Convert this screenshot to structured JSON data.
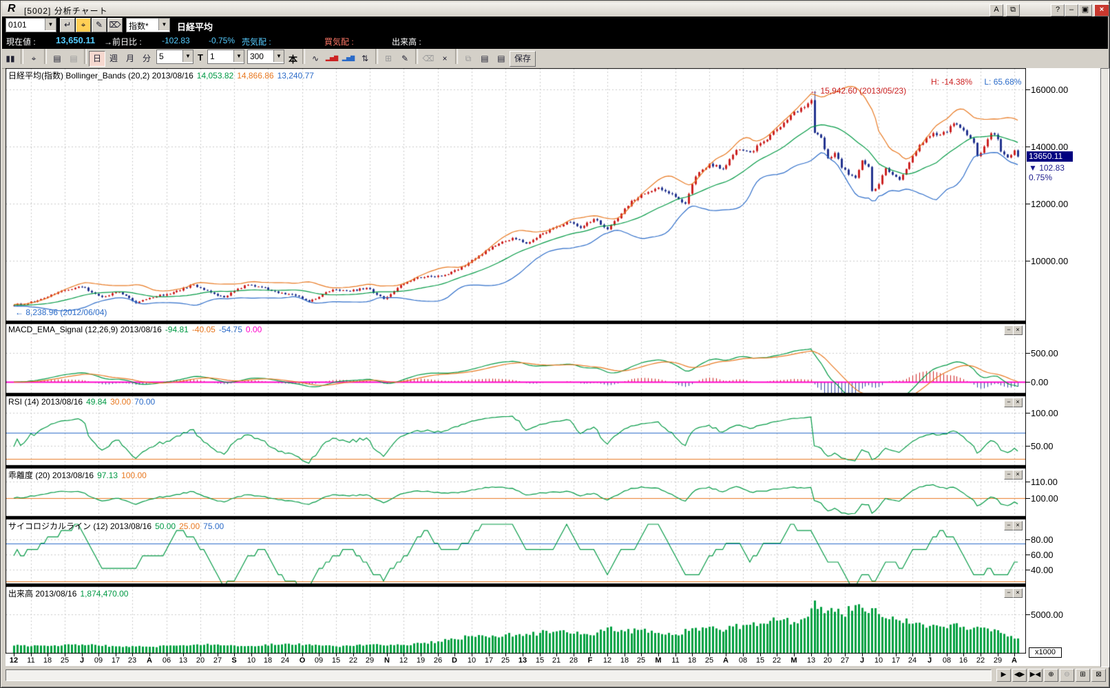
{
  "window": {
    "logo": "R",
    "title": "[5002] 分析チャート",
    "titlebar_buttons": [
      {
        "name": "font-button",
        "g": "A"
      },
      {
        "name": "arrange-windows-button",
        "g": "⧉"
      },
      {
        "name": "help-button",
        "g": "?"
      },
      {
        "name": "minimize-button",
        "g": "–"
      },
      {
        "name": "restore-button",
        "g": "▣"
      },
      {
        "name": "close-button",
        "g": "×",
        "red": true
      }
    ]
  },
  "symbol_bar": {
    "code": "0101",
    "enter_icon": "↵",
    "search_icon": "⌖",
    "edit_icon": "✎",
    "erase_icon": "⌦",
    "category": "指数*",
    "instrument_name": "日経平均"
  },
  "quote_bar": {
    "label_current": "現在値 :",
    "current": "13,650.11",
    "label_change": "→前日比 :",
    "change": "-102.83",
    "change_pct": "-0.75%",
    "label_ask": "売気配 :",
    "label_bid": "買気配 :",
    "label_volume": "出来高 :"
  },
  "chart_toolbar": {
    "items": [
      {
        "t": "btn",
        "name": "candlestick-icon",
        "g": "▮▮"
      },
      {
        "t": "sep"
      },
      {
        "t": "btn",
        "name": "zoom-icon",
        "g": "⌖"
      },
      {
        "t": "sep"
      },
      {
        "t": "btn",
        "name": "new-chart-icon",
        "g": "▤"
      },
      {
        "t": "btn",
        "name": "copy-chart-icon",
        "g": "▤",
        "dis": true
      },
      {
        "t": "sep"
      },
      {
        "t": "tab",
        "name": "period-day-button",
        "g": "日",
        "sel": true
      },
      {
        "t": "tab",
        "name": "period-week-button",
        "g": "週"
      },
      {
        "t": "tab",
        "name": "period-month-button",
        "g": "月"
      },
      {
        "t": "tab",
        "name": "period-minute-button",
        "g": "分"
      },
      {
        "t": "combo",
        "name": "minute-interval-select",
        "g": "5"
      },
      {
        "t": "label",
        "name": "tick-label",
        "g": "T"
      },
      {
        "t": "combo",
        "name": "tick-select",
        "g": "1"
      },
      {
        "t": "combo",
        "name": "bar-count-select",
        "g": "300"
      },
      {
        "t": "label",
        "name": "bars-unit-label",
        "g": "本"
      },
      {
        "t": "sep"
      },
      {
        "t": "btn",
        "name": "line-chart-icon",
        "g": "∿"
      },
      {
        "t": "btn",
        "name": "red-bars-icon",
        "g": "▂▅▇",
        "c": "#cc2222"
      },
      {
        "t": "btn",
        "name": "blue-bars-icon",
        "g": "▂▅▇",
        "c": "#2b6bc8"
      },
      {
        "t": "btn",
        "name": "updown-arrows-icon",
        "g": "⇅"
      },
      {
        "t": "sep"
      },
      {
        "t": "btn",
        "name": "grid-icon",
        "g": "⊞",
        "dis": true
      },
      {
        "t": "btn",
        "name": "pencil-icon",
        "g": "✎"
      },
      {
        "t": "sep"
      },
      {
        "t": "btn",
        "name": "eraser-icon",
        "g": "⌫",
        "dis": true
      },
      {
        "t": "btn",
        "name": "delete-drawing-icon",
        "g": "×"
      },
      {
        "t": "sep"
      },
      {
        "t": "btn",
        "name": "window-layout-icon",
        "g": "⧉",
        "dis": true
      },
      {
        "t": "btn",
        "name": "page-back-icon",
        "g": "▤"
      },
      {
        "t": "btn",
        "name": "page-forward-icon",
        "g": "▤"
      },
      {
        "t": "btn",
        "name": "save-button",
        "g": "保存",
        "wide": true
      }
    ]
  },
  "panels": {
    "main": {
      "title": "日経平均(指数) Bollinger_Bands (20,2) 2013/08/16",
      "v1": "14,053.82",
      "v2": "14,866.86",
      "v3": "13,240.77",
      "high_label": "H: -14.38%",
      "low_label": "L: 65.68%",
      "annotation_high": "← 15,942.60 (2013/05/23)",
      "annotation_low": "← 8,238.96 (2012/06/04)",
      "marker_price": "13650.11",
      "marker_change": "▼ 102.83",
      "marker_pct": "0.75%"
    },
    "macd": {
      "title": "MACD_EMA_Signal (12,26,9) 2013/08/16",
      "v1": "-94.81",
      "v2": "-40.05",
      "v3": "-54.75",
      "v4": "0.00"
    },
    "rsi": {
      "title": "RSI (14) 2013/08/16",
      "v1": "49.84",
      "v2": "30.00",
      "v3": "70.00"
    },
    "dev": {
      "title": "乖離度 (20) 2013/08/16",
      "v1": "97.13",
      "v2": "100.00"
    },
    "psych": {
      "title": "サイコロジカルライン (12) 2013/08/16",
      "v1": "50.00",
      "v2": "25.00",
      "v3": "75.00"
    },
    "vol": {
      "title": "出来高 2013/08/16",
      "v1": "1,874,470.00",
      "unit": "x1000"
    }
  },
  "palette": {
    "up": "#cc2222",
    "down": "#22338f",
    "green": "#009944",
    "orange": "#e87820",
    "blue": "#2b6bc8",
    "magenta": "#ff00cc",
    "volume": "#00a040",
    "grid": "#c9c9c9",
    "hist_neg": "#2b3f9e",
    "hist_pos": "#cc2222"
  },
  "chart_data": {
    "type": "candlestick",
    "bars": 297,
    "indicators": {
      "bollinger": [
        20,
        2
      ],
      "macd": [
        12,
        26,
        9
      ],
      "rsi": 14,
      "deviation": 20,
      "psych": 12
    },
    "axes": {
      "main": {
        "ticks": [
          16000,
          14000,
          12000,
          10000
        ]
      },
      "macd": {
        "ticks": [
          500,
          0
        ],
        "zero_line": 0
      },
      "rsi": {
        "ticks": [
          100,
          50
        ],
        "ref_blue": 70,
        "ref_orange": 30
      },
      "dev": {
        "ticks": [
          110,
          100
        ],
        "ref_orange": 100
      },
      "psych": {
        "ticks": [
          80,
          60,
          40
        ],
        "ref_blue": 75,
        "ref_orange": 25
      },
      "vol": {
        "ticks": [
          5000
        ]
      }
    },
    "peak": {
      "bar": 236,
      "high": 15942.6,
      "date": "2013/05/23"
    },
    "low_before_range": {
      "value": 8238.96,
      "date": "2012/06/04"
    },
    "price_keypoints": [
      [
        0,
        8440
      ],
      [
        6,
        8560
      ],
      [
        14,
        8950
      ],
      [
        20,
        9080
      ],
      [
        26,
        8730
      ],
      [
        31,
        8900
      ],
      [
        36,
        8520
      ],
      [
        40,
        8700
      ],
      [
        47,
        8900
      ],
      [
        53,
        9160
      ],
      [
        59,
        8840
      ],
      [
        62,
        8720
      ],
      [
        68,
        9140
      ],
      [
        73,
        9070
      ],
      [
        78,
        8870
      ],
      [
        83,
        8780
      ],
      [
        87,
        8570
      ],
      [
        94,
        8990
      ],
      [
        99,
        8930
      ],
      [
        104,
        9050
      ],
      [
        109,
        8660
      ],
      [
        114,
        9150
      ],
      [
        119,
        9420
      ],
      [
        123,
        9450
      ],
      [
        128,
        9530
      ],
      [
        133,
        9830
      ],
      [
        136,
        10080
      ],
      [
        140,
        10395
      ],
      [
        143,
        10600
      ],
      [
        147,
        10800
      ],
      [
        151,
        10600
      ],
      [
        155,
        10920
      ],
      [
        160,
        11190
      ],
      [
        163,
        11360
      ],
      [
        167,
        11150
      ],
      [
        171,
        11460
      ],
      [
        175,
        11100
      ],
      [
        179,
        11650
      ],
      [
        182,
        12100
      ],
      [
        186,
        12350
      ],
      [
        190,
        12560
      ],
      [
        194,
        12340
      ],
      [
        198,
        12000
      ],
      [
        201,
        12950
      ],
      [
        205,
        13400
      ],
      [
        209,
        13220
      ],
      [
        213,
        13880
      ],
      [
        217,
        13800
      ],
      [
        221,
        14180
      ],
      [
        225,
        14600
      ],
      [
        229,
        15100
      ],
      [
        233,
        15380
      ],
      [
        235,
        15627
      ],
      [
        236,
        14483
      ],
      [
        238,
        14310
      ],
      [
        240,
        13589
      ],
      [
        242,
        13775
      ],
      [
        244,
        13262
      ],
      [
        246,
        13014
      ],
      [
        248,
        12904
      ],
      [
        250,
        13514
      ],
      [
        252,
        13289
      ],
      [
        253,
        12445
      ],
      [
        255,
        12686
      ],
      [
        257,
        13245
      ],
      [
        259,
        13014
      ],
      [
        261,
        12835
      ],
      [
        263,
        13214
      ],
      [
        265,
        13677
      ],
      [
        267,
        14056
      ],
      [
        269,
        14310
      ],
      [
        271,
        14472
      ],
      [
        273,
        14416
      ],
      [
        275,
        14506
      ],
      [
        277,
        14808
      ],
      [
        279,
        14658
      ],
      [
        281,
        14400
      ],
      [
        283,
        14130
      ],
      [
        284,
        13661
      ],
      [
        286,
        14005
      ],
      [
        288,
        14466
      ],
      [
        290,
        14258
      ],
      [
        291,
        13825
      ],
      [
        293,
        13615
      ],
      [
        295,
        13867
      ],
      [
        296,
        13650.11
      ]
    ],
    "volume_keypoints": [
      [
        0,
        950
      ],
      [
        10,
        900
      ],
      [
        20,
        1100
      ],
      [
        30,
        850
      ],
      [
        40,
        800
      ],
      [
        50,
        1000
      ],
      [
        60,
        1100
      ],
      [
        70,
        900
      ],
      [
        80,
        1200
      ],
      [
        90,
        1000
      ],
      [
        95,
        850
      ],
      [
        100,
        900
      ],
      [
        105,
        1100
      ],
      [
        110,
        950
      ],
      [
        115,
        1050
      ],
      [
        120,
        1260
      ],
      [
        125,
        1500
      ],
      [
        130,
        1800
      ],
      [
        135,
        2200
      ],
      [
        140,
        2000
      ],
      [
        145,
        2400
      ],
      [
        150,
        2200
      ],
      [
        155,
        2600
      ],
      [
        160,
        2800
      ],
      [
        165,
        2500
      ],
      [
        170,
        2300
      ],
      [
        175,
        3300
      ],
      [
        180,
        2800
      ],
      [
        185,
        3000
      ],
      [
        190,
        2600
      ],
      [
        195,
        2400
      ],
      [
        200,
        3200
      ],
      [
        205,
        3400
      ],
      [
        210,
        3000
      ],
      [
        215,
        3600
      ],
      [
        220,
        3800
      ],
      [
        225,
        4200
      ],
      [
        230,
        4000
      ],
      [
        233,
        4500
      ],
      [
        236,
        6800
      ],
      [
        240,
        5500
      ],
      [
        244,
        5000
      ],
      [
        248,
        6200
      ],
      [
        253,
        5800
      ],
      [
        257,
        4500
      ],
      [
        261,
        4200
      ],
      [
        265,
        3800
      ],
      [
        270,
        3500
      ],
      [
        275,
        3200
      ],
      [
        277,
        3800
      ],
      [
        281,
        3000
      ],
      [
        284,
        3400
      ],
      [
        288,
        2800
      ],
      [
        291,
        2600
      ],
      [
        294,
        2200
      ],
      [
        296,
        1874
      ]
    ],
    "x_axis_labels": [
      [
        "12",
        1
      ],
      [
        "11",
        0
      ],
      [
        "18",
        0
      ],
      [
        "25",
        0
      ],
      [
        "J",
        1
      ],
      [
        "09",
        0
      ],
      [
        "17",
        0
      ],
      [
        "23",
        0
      ],
      [
        "A",
        1
      ],
      [
        "06",
        0
      ],
      [
        "13",
        0
      ],
      [
        "20",
        0
      ],
      [
        "27",
        0
      ],
      [
        "S",
        1
      ],
      [
        "10",
        0
      ],
      [
        "18",
        0
      ],
      [
        "24",
        0
      ],
      [
        "O",
        1
      ],
      [
        "09",
        0
      ],
      [
        "15",
        0
      ],
      [
        "22",
        0
      ],
      [
        "29",
        0
      ],
      [
        "N",
        1
      ],
      [
        "12",
        0
      ],
      [
        "19",
        0
      ],
      [
        "26",
        0
      ],
      [
        "D",
        1
      ],
      [
        "10",
        0
      ],
      [
        "17",
        0
      ],
      [
        "25",
        0
      ],
      [
        "13",
        1
      ],
      [
        "15",
        0
      ],
      [
        "21",
        0
      ],
      [
        "28",
        0
      ],
      [
        "F",
        1
      ],
      [
        "12",
        0
      ],
      [
        "18",
        0
      ],
      [
        "25",
        0
      ],
      [
        "M",
        1
      ],
      [
        "11",
        0
      ],
      [
        "18",
        0
      ],
      [
        "25",
        0
      ],
      [
        "A",
        1
      ],
      [
        "08",
        0
      ],
      [
        "15",
        0
      ],
      [
        "22",
        0
      ],
      [
        "M",
        1
      ],
      [
        "13",
        0
      ],
      [
        "20",
        0
      ],
      [
        "27",
        0
      ],
      [
        "J",
        1
      ],
      [
        "10",
        0
      ],
      [
        "17",
        0
      ],
      [
        "24",
        0
      ],
      [
        "J",
        1
      ],
      [
        "08",
        0
      ],
      [
        "16",
        0
      ],
      [
        "22",
        0
      ],
      [
        "29",
        0
      ],
      [
        "A",
        1
      ]
    ]
  },
  "scrollbar": {
    "buttons": [
      {
        "name": "scroll-step-button",
        "g": "▶"
      },
      {
        "name": "expand-bars-button",
        "g": "◀▶"
      },
      {
        "name": "shrink-bars-button",
        "g": "▶◀"
      },
      {
        "name": "zoom-in-button",
        "g": "⊕"
      },
      {
        "name": "zoom-out-button",
        "g": "⊖",
        "dis": true
      },
      {
        "name": "grid-toggle-button",
        "g": "⊞"
      },
      {
        "name": "close-chart-button",
        "g": "⊠"
      }
    ]
  }
}
